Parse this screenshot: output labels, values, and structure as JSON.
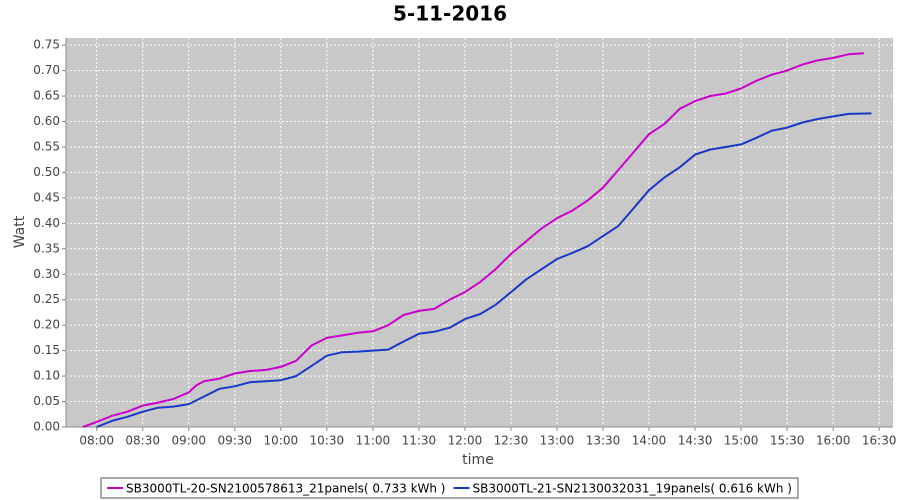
{
  "chart_data": {
    "type": "line",
    "title": "5-11-2016",
    "x_label": "time",
    "y_label": "Watt",
    "xlim": [
      "07:40",
      "16:39"
    ],
    "xticks": [
      "08:00",
      "08:30",
      "09:00",
      "09:30",
      "10:00",
      "10:30",
      "11:00",
      "11:30",
      "12:00",
      "12:30",
      "13:00",
      "13:30",
      "14:00",
      "14:30",
      "15:00",
      "15:30",
      "16:00",
      "16:30"
    ],
    "ylim": [
      0,
      0.764
    ],
    "yticks": [
      {
        "value": 0,
        "label": "0.00"
      },
      0.05,
      {
        "value": 0.1,
        "label": "0.10"
      },
      0.15,
      {
        "value": 0.2,
        "label": "0.20"
      },
      0.25,
      {
        "value": 0.3,
        "label": "0.30"
      },
      0.35,
      {
        "value": 0.4,
        "label": "0.40"
      },
      0.45,
      {
        "value": 0.5,
        "label": "0.50"
      },
      0.55,
      {
        "value": 0.6,
        "label": "0.60"
      },
      0.65,
      {
        "value": 0.7,
        "label": "0.70"
      },
      0.75
    ],
    "grid": true,
    "legend": "bottom",
    "series": [
      {
        "name": "SB3000TL-20-SN2100578613_21panels( 0.733 kWh )",
        "color": "#cc00cc",
        "x": [
          "07:51",
          "08:00",
          "08:10",
          "08:20",
          "08:30",
          "08:40",
          "08:50",
          "09:00",
          "09:05",
          "09:10",
          "09:20",
          "09:30",
          "09:40",
          "09:50",
          "10:00",
          "10:10",
          "10:20",
          "10:30",
          "10:40",
          "10:50",
          "11:00",
          "11:10",
          "11:20",
          "11:30",
          "11:40",
          "11:50",
          "12:00",
          "12:10",
          "12:20",
          "12:30",
          "12:40",
          "12:50",
          "13:00",
          "13:10",
          "13:20",
          "13:30",
          "13:40",
          "13:50",
          "14:00",
          "14:10",
          "14:20",
          "14:30",
          "14:40",
          "14:50",
          "15:00",
          "15:10",
          "15:20",
          "15:30",
          "15:40",
          "15:50",
          "16:00",
          "16:10",
          "16:20"
        ],
        "values": [
          0.0,
          0.01,
          0.022,
          0.03,
          0.042,
          0.048,
          0.055,
          0.068,
          0.082,
          0.09,
          0.095,
          0.105,
          0.11,
          0.112,
          0.118,
          0.13,
          0.16,
          0.175,
          0.18,
          0.185,
          0.188,
          0.2,
          0.22,
          0.228,
          0.232,
          0.25,
          0.265,
          0.285,
          0.31,
          0.34,
          0.365,
          0.39,
          0.41,
          0.425,
          0.445,
          0.47,
          0.505,
          0.54,
          0.575,
          0.595,
          0.625,
          0.64,
          0.65,
          0.655,
          0.665,
          0.68,
          0.692,
          0.7,
          0.712,
          0.72,
          0.725,
          0.732,
          0.734
        ]
      },
      {
        "name": "SB3000TL-21-SN2130032031_19panels( 0.616 kWh )",
        "color": "#1a37c8",
        "x": [
          "08:00",
          "08:10",
          "08:20",
          "08:30",
          "08:40",
          "08:50",
          "09:00",
          "09:10",
          "09:20",
          "09:30",
          "09:40",
          "09:50",
          "10:00",
          "10:10",
          "10:20",
          "10:30",
          "10:40",
          "10:50",
          "11:00",
          "11:10",
          "11:20",
          "11:30",
          "11:40",
          "11:50",
          "12:00",
          "12:10",
          "12:20",
          "12:30",
          "12:40",
          "12:50",
          "13:00",
          "13:10",
          "13:20",
          "13:30",
          "13:40",
          "13:50",
          "14:00",
          "14:10",
          "14:20",
          "14:30",
          "14:40",
          "14:50",
          "15:00",
          "15:10",
          "15:20",
          "15:30",
          "15:40",
          "15:50",
          "16:00",
          "16:10",
          "16:25"
        ],
        "values": [
          0.0,
          0.012,
          0.02,
          0.03,
          0.038,
          0.04,
          0.045,
          0.06,
          0.075,
          0.08,
          0.088,
          0.09,
          0.092,
          0.1,
          0.12,
          0.14,
          0.147,
          0.148,
          0.15,
          0.152,
          0.168,
          0.183,
          0.187,
          0.195,
          0.212,
          0.222,
          0.24,
          0.265,
          0.29,
          0.31,
          0.33,
          0.342,
          0.355,
          0.375,
          0.395,
          0.43,
          0.465,
          0.49,
          0.51,
          0.535,
          0.545,
          0.55,
          0.555,
          0.568,
          0.582,
          0.588,
          0.598,
          0.605,
          0.61,
          0.615,
          0.616
        ]
      }
    ]
  }
}
